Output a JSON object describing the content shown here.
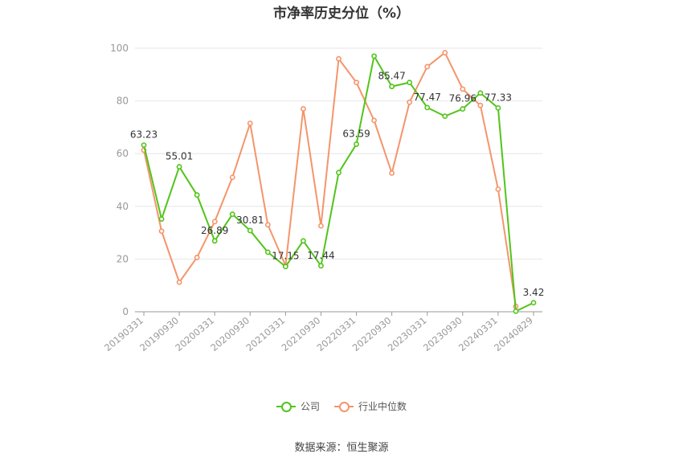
{
  "chart_data": {
    "type": "line",
    "title": "市净率历史分位（%）",
    "ylim": [
      0,
      100
    ],
    "yticks": [
      0,
      20,
      40,
      60,
      80,
      100
    ],
    "x": [
      "20190331",
      "20190630",
      "20190930",
      "20191231",
      "20200331",
      "20200630",
      "20200930",
      "20201231",
      "20210331",
      "20210630",
      "20210930",
      "20211231",
      "20220331",
      "20220630",
      "20220930",
      "20221231",
      "20230331",
      "20230630",
      "20230930",
      "20231231",
      "20240331",
      "20240630",
      "20240829"
    ],
    "xtick_labels": [
      "20190331",
      "20190930",
      "20200331",
      "20200930",
      "20210331",
      "20210930",
      "20220331",
      "20220930",
      "20230331",
      "20230930",
      "20240331",
      "20240829"
    ],
    "series": [
      {
        "name": "公司",
        "color": "#52c41a",
        "values": [
          63.23,
          35.2,
          55.01,
          44.3,
          26.89,
          37.0,
          30.81,
          22.6,
          17.15,
          26.9,
          17.44,
          52.8,
          63.59,
          97.0,
          85.47,
          87.0,
          77.47,
          74.2,
          76.96,
          83.0,
          77.33,
          0.2,
          3.42
        ],
        "labels": {
          "0": "63.23",
          "2": "55.01",
          "4": "26.89",
          "6": "30.81",
          "8": "17.15",
          "10": "17.44",
          "12": "63.59",
          "14": "85.47",
          "16": "77.47",
          "18": "76.96",
          "20": "77.33",
          "22": "3.42"
        }
      },
      {
        "name": "行业中位数",
        "color": "#f4956b",
        "values": [
          61.3,
          30.6,
          11.2,
          20.6,
          34.2,
          51.0,
          71.5,
          33.0,
          17.5,
          77.0,
          32.6,
          96.0,
          87.0,
          72.6,
          52.6,
          79.5,
          93.0,
          98.3,
          84.5,
          78.3,
          46.5,
          2.0,
          null
        ]
      }
    ],
    "legend": [
      "公司",
      "行业中位数"
    ],
    "legend_position": "bottom",
    "grid": true
  },
  "footer": {
    "source": "数据来源：恒生聚源"
  }
}
